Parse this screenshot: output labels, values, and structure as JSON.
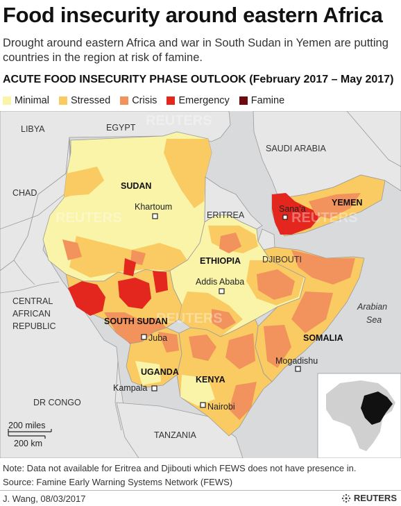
{
  "header": {
    "title": "Food insecurity around eastern Africa",
    "subtitle": "Drought around eastern Africa and war in South Sudan in Yemen are putting countries in the region at risk of famine.",
    "outlook_heading": "ACUTE FOOD INSECURITY PHASE OUTLOOK (February 2017 – May 2017)"
  },
  "legend": [
    {
      "label": "Minimal",
      "color": "#f9f4a8"
    },
    {
      "label": "Stressed",
      "color": "#f9cb62"
    },
    {
      "label": "Crisis",
      "color": "#f2925c"
    },
    {
      "label": "Emergency",
      "color": "#e3261e"
    },
    {
      "label": "Famine",
      "color": "#6e0a0e"
    }
  ],
  "colors": {
    "sea": "#d9dadc",
    "land_outside": "#e7e7e8",
    "border": "#9a9a9a",
    "minimal": "#f9f4a8",
    "stressed": "#f9cb62",
    "crisis": "#f2925c",
    "emergency": "#e3261e",
    "famine": "#6e0a0e"
  },
  "map": {
    "countries": {
      "libya": "LIBYA",
      "egypt": "EGYPT",
      "saudi_arabia": "SAUDI ARABIA",
      "chad": "CHAD",
      "sudan": "SUDAN",
      "eritrea": "ERITREA",
      "yemen": "YEMEN",
      "djibouti": "DJIBOUTI",
      "ethiopia": "ETHIOPIA",
      "car_line1": "CENTRAL",
      "car_line2": "AFRICAN",
      "car_line3": "REPUBLIC",
      "south_sudan": "SOUTH SUDAN",
      "somalia": "SOMALIA",
      "uganda": "UGANDA",
      "kenya": "KENYA",
      "dr_congo": "DR CONGO",
      "tanzania": "TANZANIA"
    },
    "cities": {
      "khartoum": "Khartoum",
      "sanaa": "Sana'a",
      "addis_ababa": "Addis Ababa",
      "juba": "Juba",
      "mogadishu": "Mogadishu",
      "kampala": "Kampala",
      "nairobi": "Nairobi"
    },
    "water": {
      "arabian_sea_line1": "Arabian",
      "arabian_sea_line2": "Sea"
    },
    "scale": {
      "miles": "200 miles",
      "km": "200 km"
    },
    "watermark": "REUTERS",
    "inset": "locator-map-africa"
  },
  "footer": {
    "note": "Note: Data not available for Eritrea and Djibouti which FEWS does not have presence in.",
    "source": "Source: Famine Early Warning Systems Network (FEWS)",
    "credit": "J. Wang,  08/03/2017",
    "brand": "REUTERS",
    "brand_icon": "reuters-logo-icon"
  }
}
